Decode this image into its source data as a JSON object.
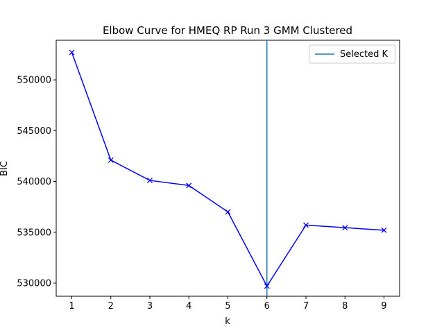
{
  "chart_data": {
    "type": "line",
    "title": "Elbow Curve for HMEQ RP Run 3 GMM Clustered",
    "xlabel": "k",
    "ylabel": "BIC",
    "x": [
      1,
      2,
      3,
      4,
      5,
      6,
      7,
      8,
      9
    ],
    "series": [
      {
        "values": [
          552700,
          542100,
          540100,
          539600,
          537000,
          529700,
          535700,
          535450,
          535200
        ],
        "color": "#0000ff",
        "marker": "x"
      }
    ],
    "vline": {
      "x": 6,
      "name": "Selected K",
      "color": "#1f77b4"
    },
    "xlim": [
      0.6,
      9.4
    ],
    "ylim": [
      528700,
      553900
    ],
    "xticks": [
      "1",
      "2",
      "3",
      "4",
      "5",
      "6",
      "7",
      "8",
      "9"
    ],
    "yticks": [
      "530000",
      "535000",
      "540000",
      "545000",
      "550000"
    ],
    "grid": false,
    "legend": {
      "placement": "top-right",
      "entries": [
        "Selected K"
      ]
    }
  }
}
